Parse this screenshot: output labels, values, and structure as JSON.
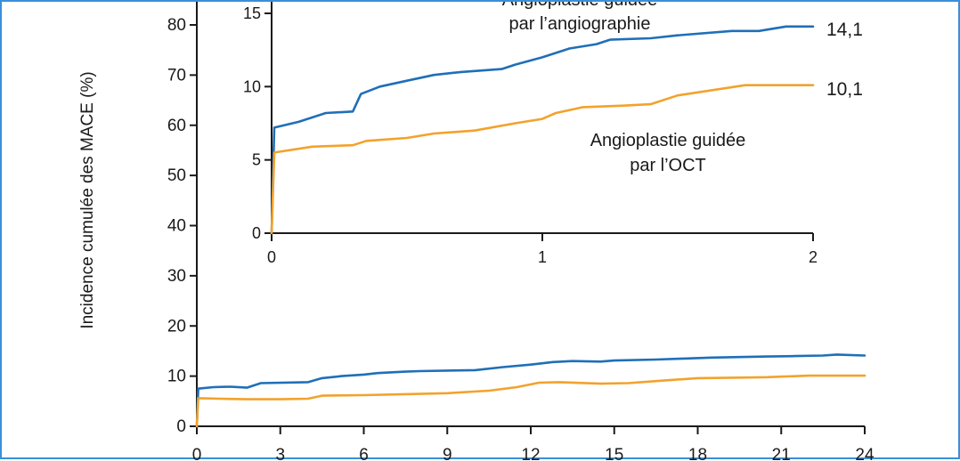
{
  "chart_data": [
    {
      "id": "main",
      "type": "line",
      "ylabel": "Incidence cumulée des MACE (%)",
      "xlabel": "",
      "ylim": [
        0,
        80
      ],
      "xlim": [
        0,
        24
      ],
      "yticks": [
        "0",
        "10",
        "20",
        "30",
        "40",
        "50",
        "60",
        "70",
        "80"
      ],
      "xticks": [
        "0",
        "3",
        "6",
        "9",
        "12",
        "15",
        "18",
        "21",
        "24"
      ],
      "series": [
        {
          "name": "Angioplastie guidée par l'angiographie",
          "color": "#1f6fb8",
          "x": [
            0,
            0.05,
            0.6,
            1.2,
            1.8,
            2.3,
            4.0,
            4.5,
            5.2,
            6.0,
            6.5,
            7.5,
            8.0,
            10.0,
            11.0,
            12.0,
            12.8,
            13.5,
            14.5,
            15.0,
            16.5,
            17.5,
            18.5,
            19.5,
            20.5,
            21.5,
            22.5,
            23.0,
            24.0
          ],
          "y": [
            0,
            7.5,
            7.8,
            7.9,
            7.7,
            8.6,
            8.8,
            9.6,
            10.0,
            10.3,
            10.6,
            10.9,
            11.0,
            11.2,
            11.8,
            12.3,
            12.8,
            13.0,
            12.9,
            13.1,
            13.3,
            13.5,
            13.7,
            13.8,
            13.9,
            14.0,
            14.1,
            14.3,
            14.1
          ]
        },
        {
          "name": "Angioplastie guidée par l'OCT",
          "color": "#f2a22c",
          "x": [
            0,
            0.05,
            0.8,
            1.8,
            3.0,
            4.0,
            4.5,
            6.0,
            7.5,
            9.0,
            10.5,
            11.5,
            12.3,
            13.0,
            14.5,
            15.5,
            17.0,
            18.0,
            19.5,
            20.5,
            21.0,
            22.0,
            24.0
          ],
          "y": [
            0,
            5.6,
            5.5,
            5.4,
            5.4,
            5.5,
            6.1,
            6.2,
            6.4,
            6.6,
            7.1,
            7.8,
            8.7,
            8.8,
            8.5,
            8.6,
            9.2,
            9.6,
            9.7,
            9.8,
            9.9,
            10.1,
            10.1
          ]
        }
      ]
    },
    {
      "id": "inset",
      "type": "line",
      "xlim": [
        0,
        2
      ],
      "ylim": [
        0,
        15
      ],
      "yticks": [
        "0",
        "5",
        "10",
        "15"
      ],
      "xticks": [
        "0",
        "1",
        "2"
      ],
      "annotations": {
        "angio_line1": "Angioplastie guidée",
        "angio_line2": "par l’angiographie",
        "oct_line1": "Angioplastie guidée",
        "oct_line2": "par l’OCT",
        "angio_end": "14,1",
        "oct_end": "10,1"
      },
      "series": [
        {
          "name": "Angioplastie guidée par l'angiographie",
          "color": "#1f6fb8",
          "x": [
            0,
            0.01,
            0.1,
            0.2,
            0.3,
            0.33,
            0.4,
            0.5,
            0.6,
            0.7,
            0.85,
            0.9,
            1.0,
            1.1,
            1.2,
            1.25,
            1.4,
            1.5,
            1.7,
            1.8,
            1.9,
            2.0
          ],
          "y": [
            0,
            7.2,
            7.6,
            8.2,
            8.3,
            9.5,
            10.0,
            10.4,
            10.8,
            11.0,
            11.2,
            11.5,
            12.0,
            12.6,
            12.9,
            13.2,
            13.3,
            13.5,
            13.8,
            13.8,
            14.1,
            14.1
          ]
        },
        {
          "name": "Angioplastie guidée par l'OCT",
          "color": "#f2a22c",
          "x": [
            0,
            0.01,
            0.15,
            0.3,
            0.35,
            0.5,
            0.6,
            0.75,
            0.9,
            1.0,
            1.05,
            1.15,
            1.3,
            1.4,
            1.5,
            1.75,
            2.0
          ],
          "y": [
            0,
            5.5,
            5.9,
            6.0,
            6.3,
            6.5,
            6.8,
            7.0,
            7.5,
            7.8,
            8.2,
            8.6,
            8.7,
            8.8,
            9.4,
            10.1,
            10.1
          ]
        }
      ]
    }
  ]
}
